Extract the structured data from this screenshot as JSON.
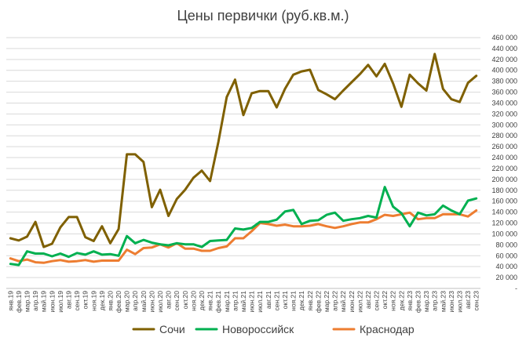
{
  "chart_data": {
    "type": "line",
    "title": "Цены первички (руб.кв.м.)",
    "xlabel": "",
    "ylabel": "",
    "ylim": [
      0,
      460000
    ],
    "y_ticks": [
      {
        "value": 0,
        "label": "-"
      },
      {
        "value": 20000,
        "label": "20 000"
      },
      {
        "value": 40000,
        "label": "40 000"
      },
      {
        "value": 60000,
        "label": "60 000"
      },
      {
        "value": 80000,
        "label": "80 000"
      },
      {
        "value": 100000,
        "label": "100 000"
      },
      {
        "value": 120000,
        "label": "120 000"
      },
      {
        "value": 140000,
        "label": "140 000"
      },
      {
        "value": 160000,
        "label": "160 000"
      },
      {
        "value": 180000,
        "label": "180 000"
      },
      {
        "value": 200000,
        "label": "200 000"
      },
      {
        "value": 220000,
        "label": "220 000"
      },
      {
        "value": 240000,
        "label": "240 000"
      },
      {
        "value": 260000,
        "label": "260 000"
      },
      {
        "value": 280000,
        "label": "280 000"
      },
      {
        "value": 300000,
        "label": "300 000"
      },
      {
        "value": 320000,
        "label": "320 000"
      },
      {
        "value": 340000,
        "label": "340 000"
      },
      {
        "value": 360000,
        "label": "360 000"
      },
      {
        "value": 380000,
        "label": "380 000"
      },
      {
        "value": 400000,
        "label": "400 000"
      },
      {
        "value": 420000,
        "label": "420 000"
      },
      {
        "value": 440000,
        "label": "440 000"
      },
      {
        "value": 460000,
        "label": "460 000"
      }
    ],
    "grid": true,
    "legend_position": "bottom",
    "categories": [
      "янв.19",
      "фев.19",
      "мар.19",
      "апр.19",
      "май.19",
      "июн.19",
      "июл.19",
      "авг.19",
      "сен.19",
      "окт.19",
      "ноя.19",
      "дек.19",
      "янв.20",
      "фев.20",
      "мар.20",
      "апр.20",
      "май.20",
      "июн.20",
      "июл.20",
      "авг.20",
      "сен.20",
      "окт.20",
      "ноя.20",
      "дек.20",
      "янв.21",
      "фев.21",
      "мар.21",
      "апр.21",
      "май.21",
      "июн.21",
      "июл.21",
      "авг.21",
      "сен.21",
      "окт.21",
      "ноя.21",
      "дек.21",
      "янв.22",
      "фев.22",
      "мар.22",
      "апр.22",
      "май.22",
      "июн.22",
      "июл.22",
      "авг.22",
      "сен.22",
      "окт.22",
      "ноя.22",
      "дек.22",
      "янв.23",
      "фев.23",
      "мар.23",
      "апр.23",
      "май.23",
      "июн.23",
      "июл.23",
      "авг.23",
      "сен.23"
    ],
    "series": [
      {
        "name": "Сочи",
        "color": "#7f6000",
        "values": [
          92000,
          88000,
          95000,
          122000,
          76000,
          82000,
          112000,
          131000,
          131000,
          94000,
          87000,
          114000,
          83000,
          109000,
          246000,
          246000,
          232000,
          149000,
          181000,
          133000,
          164000,
          181000,
          203000,
          216000,
          197000,
          269000,
          351000,
          383000,
          318000,
          358000,
          362000,
          362000,
          332000,
          366000,
          392000,
          398000,
          401000,
          364000,
          356000,
          347000,
          363000,
          378000,
          393000,
          410000,
          389000,
          412000,
          376000,
          333000,
          392000,
          376000,
          363000,
          430000,
          366000,
          347000,
          342000,
          377000,
          390000
        ]
      },
      {
        "name": "Новороссийск",
        "color": "#00b050",
        "values": [
          45000,
          43000,
          68000,
          64000,
          64000,
          59000,
          64000,
          58000,
          65000,
          62000,
          68000,
          62000,
          63000,
          60000,
          96000,
          83000,
          89000,
          84000,
          81000,
          79000,
          83000,
          81000,
          81000,
          76000,
          87000,
          88000,
          89000,
          110000,
          108000,
          111000,
          122000,
          122000,
          126000,
          141000,
          144000,
          118000,
          124000,
          125000,
          135000,
          139000,
          124000,
          127000,
          129000,
          133000,
          130000,
          186000,
          150000,
          138000,
          114000,
          139000,
          134000,
          136000,
          152000,
          143000,
          136000,
          161000,
          165000
        ]
      },
      {
        "name": "Краснодар",
        "color": "#ed7d31",
        "values": [
          55000,
          50000,
          53000,
          48000,
          47000,
          50000,
          52000,
          49000,
          50000,
          52000,
          49000,
          51000,
          51000,
          51000,
          71000,
          63000,
          74000,
          75000,
          81000,
          75000,
          83000,
          73000,
          73000,
          69000,
          69000,
          74000,
          77000,
          92000,
          92000,
          105000,
          120000,
          118000,
          115000,
          117000,
          114000,
          114000,
          115000,
          118000,
          114000,
          111000,
          114000,
          118000,
          121000,
          121000,
          127000,
          135000,
          133000,
          136000,
          139000,
          127000,
          129000,
          129000,
          136000,
          136000,
          136000,
          132000,
          143000
        ]
      }
    ]
  }
}
